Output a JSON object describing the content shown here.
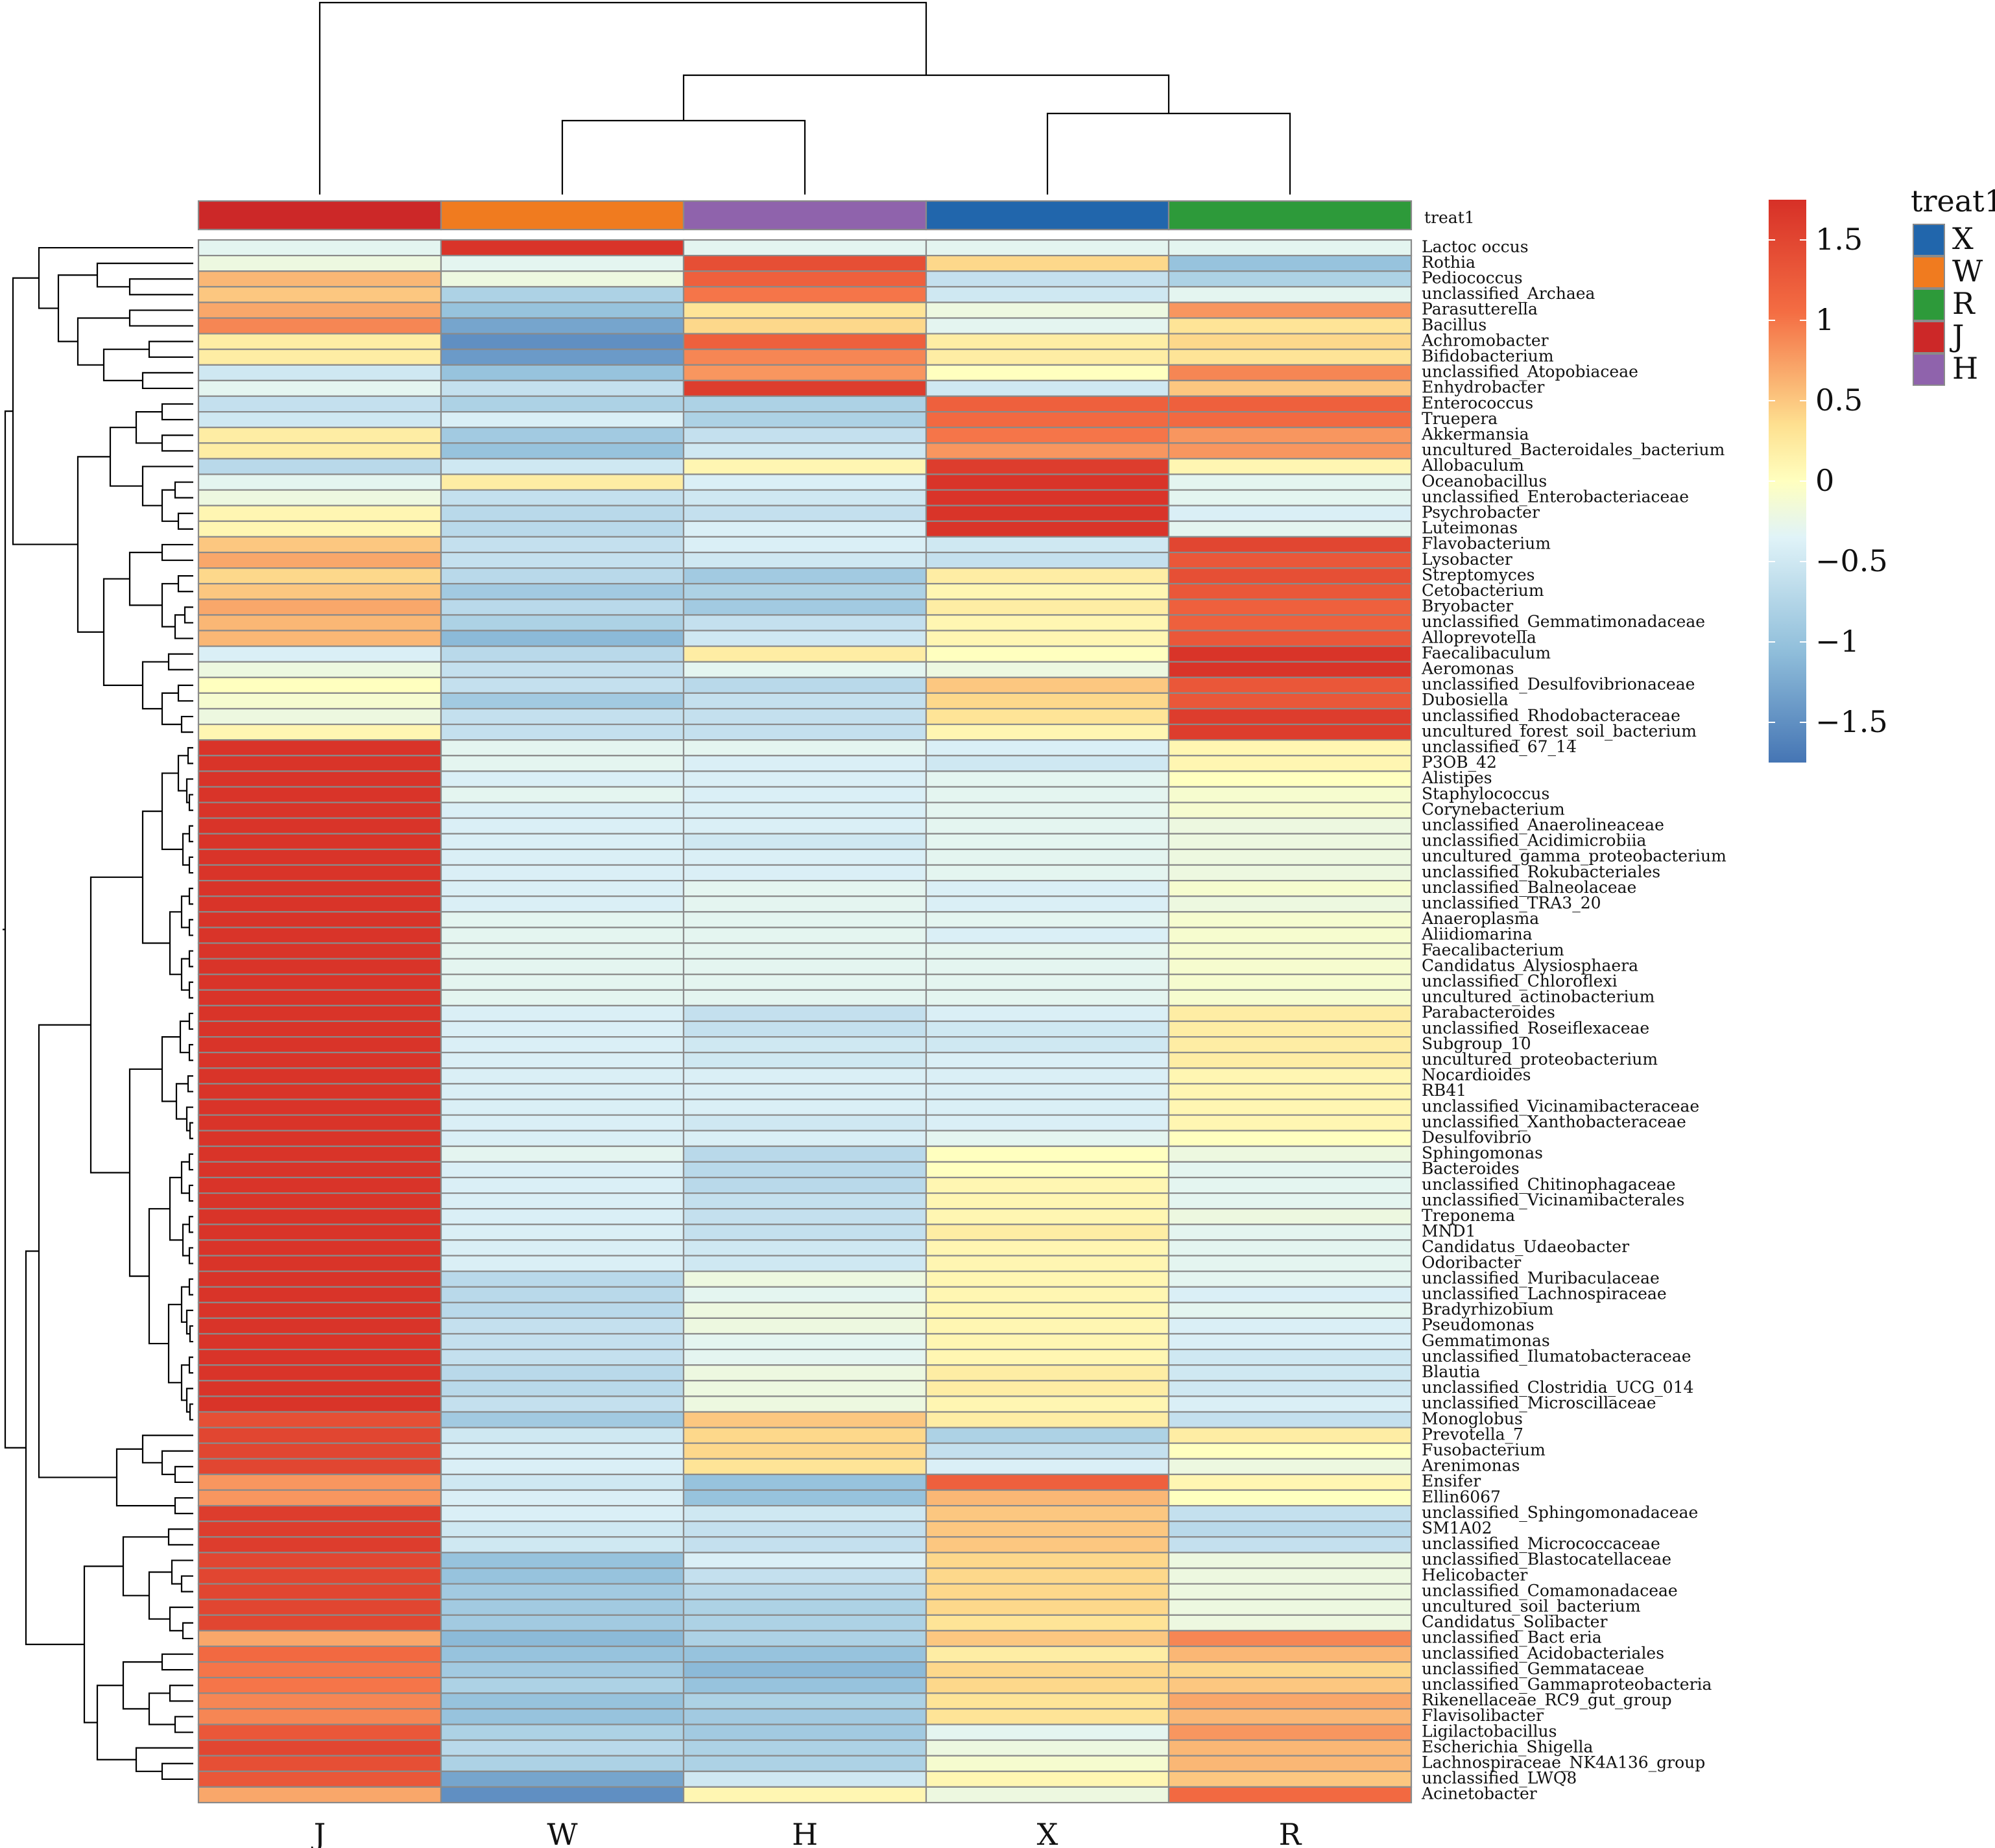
{
  "chart_data": {
    "type": "heatmap",
    "columns": [
      "J",
      "W",
      "H",
      "X",
      "R"
    ],
    "annotation": {
      "name": "treat1",
      "groups": [
        "X",
        "W",
        "R",
        "J",
        "H"
      ],
      "colors": {
        "X": "#2166ac",
        "W": "#f07b1f",
        "R": "#2d9a3a",
        "J": "#cc2828",
        "H": "#8f63ac"
      }
    },
    "color_scale": {
      "min": -1.75,
      "max": 1.75,
      "ticks": [
        1.5,
        1,
        0.5,
        0,
        -0.5,
        -1,
        -1.5
      ],
      "tick_labels": [
        "1.5",
        "1",
        "0.5",
        "0",
        "−0.5",
        "−1",
        "−1.5"
      ],
      "stops": [
        {
          "v": -1.75,
          "c": "#4575b4"
        },
        {
          "v": -1.05,
          "c": "#91bfdb"
        },
        {
          "v": -0.35,
          "c": "#e0f3f8"
        },
        {
          "v": 0.0,
          "c": "#ffffbf"
        },
        {
          "v": 0.35,
          "c": "#fee090"
        },
        {
          "v": 1.05,
          "c": "#f46d43"
        },
        {
          "v": 1.75,
          "c": "#d73027"
        }
      ]
    },
    "rows": [
      {
        "label": "Lactoc occus",
        "values": [
          -0.3,
          1.7,
          -0.3,
          -0.3,
          -0.3
        ]
      },
      {
        "label": "Rothia",
        "values": [
          -0.2,
          -0.3,
          1.4,
          0.4,
          -1.0
        ]
      },
      {
        "label": "Pediococcus",
        "values": [
          0.6,
          -0.2,
          1.2,
          -0.6,
          -0.8
        ]
      },
      {
        "label": "unclassified_Archaea",
        "values": [
          0.5,
          -0.8,
          1.0,
          -0.5,
          -0.3
        ]
      },
      {
        "label": "Parasutterella",
        "values": [
          0.7,
          -1.0,
          0.3,
          -0.2,
          0.8
        ]
      },
      {
        "label": "Bacillus",
        "values": [
          0.9,
          -1.3,
          0.4,
          -0.3,
          0.3
        ]
      },
      {
        "label": "Achromobacter",
        "values": [
          0.2,
          -1.5,
          1.2,
          0.2,
          0.4
        ]
      },
      {
        "label": "Bifidobacterium",
        "values": [
          0.2,
          -1.4,
          0.9,
          0.2,
          0.3
        ]
      },
      {
        "label": "unclassified_Atopobiaceae",
        "values": [
          -0.5,
          -1.0,
          0.8,
          0.0,
          0.9
        ]
      },
      {
        "label": "Enhydrobacter",
        "values": [
          -0.3,
          -0.6,
          1.6,
          -0.5,
          0.5
        ]
      },
      {
        "label": "Enterococcus",
        "values": [
          -0.6,
          -0.8,
          -0.8,
          1.2,
          1.2
        ]
      },
      {
        "label": "Truepera",
        "values": [
          -0.5,
          -0.4,
          -0.8,
          1.1,
          1.1
        ]
      },
      {
        "label": "Akkermansia",
        "values": [
          0.2,
          -0.9,
          -0.6,
          1.0,
          0.8
        ]
      },
      {
        "label": "uncultured_Bacteroidales_bacterium",
        "values": [
          0.2,
          -1.0,
          -0.5,
          0.8,
          0.8
        ]
      },
      {
        "label": "Allobaculum",
        "values": [
          -0.7,
          -0.5,
          0.1,
          1.6,
          0.1
        ]
      },
      {
        "label": "Oceanobacillus",
        "values": [
          -0.3,
          0.2,
          -0.4,
          1.7,
          -0.3
        ]
      },
      {
        "label": "unclassified_Enterobacteriaceae",
        "values": [
          -0.2,
          -0.6,
          -0.5,
          1.7,
          -0.3
        ]
      },
      {
        "label": "Psychrobacter",
        "values": [
          0.1,
          -0.7,
          -0.6,
          1.7,
          -0.4
        ]
      },
      {
        "label": "Luteimonas",
        "values": [
          0.1,
          -0.7,
          -0.4,
          1.7,
          -0.3
        ]
      },
      {
        "label": "Flavobacterium",
        "values": [
          0.5,
          -0.6,
          -0.4,
          -0.5,
          1.5
        ]
      },
      {
        "label": "Lysobacter",
        "values": [
          0.7,
          -0.6,
          -0.5,
          -0.6,
          1.3
        ]
      },
      {
        "label": "Streptomyces",
        "values": [
          0.4,
          -0.7,
          -0.9,
          0.2,
          1.4
        ]
      },
      {
        "label": "Cetobacterium",
        "values": [
          0.5,
          -0.9,
          -0.8,
          0.1,
          1.3
        ]
      },
      {
        "label": "Bryobacter",
        "values": [
          0.7,
          -0.7,
          -0.9,
          0.2,
          1.2
        ]
      },
      {
        "label": "unclassified_Gemmatimonadaceae",
        "values": [
          0.6,
          -0.8,
          -0.6,
          0.1,
          1.2
        ]
      },
      {
        "label": "Alloprevotella",
        "values": [
          0.6,
          -1.1,
          -0.5,
          0.1,
          1.3
        ]
      },
      {
        "label": "Faecalibaculum",
        "values": [
          -0.4,
          -0.7,
          0.2,
          0.0,
          1.7
        ]
      },
      {
        "label": "Aeromonas",
        "values": [
          -0.2,
          -0.6,
          -0.3,
          -0.2,
          1.7
        ]
      },
      {
        "label": "unclassified_Desulfovibrionaceae",
        "values": [
          0.0,
          -0.6,
          -0.7,
          0.5,
          1.3
        ]
      },
      {
        "label": "Dubosiella",
        "values": [
          -0.1,
          -0.9,
          -0.6,
          0.4,
          1.3
        ]
      },
      {
        "label": "unclassified_Rhodobacteraceae",
        "values": [
          -0.2,
          -0.6,
          -0.6,
          0.3,
          1.6
        ]
      },
      {
        "label": "uncultured_forest_soil_bacterium",
        "values": [
          0.1,
          -0.6,
          -0.6,
          0.1,
          1.6
        ]
      },
      {
        "label": "unclassified_67_14",
        "values": [
          1.7,
          -0.3,
          -0.3,
          -0.4,
          0.1
        ]
      },
      {
        "label": "P3OB_42",
        "values": [
          1.7,
          -0.3,
          -0.4,
          -0.5,
          0.1
        ]
      },
      {
        "label": "Alistipes",
        "values": [
          1.7,
          -0.4,
          -0.4,
          -0.3,
          0.0
        ]
      },
      {
        "label": "Staphylococcus",
        "values": [
          1.7,
          -0.3,
          -0.4,
          -0.3,
          -0.1
        ]
      },
      {
        "label": "Corynebacterium",
        "values": [
          1.7,
          -0.4,
          -0.4,
          -0.3,
          -0.1
        ]
      },
      {
        "label": "unclassified_Anaerolineaceae",
        "values": [
          1.7,
          -0.4,
          -0.4,
          -0.3,
          -0.2
        ]
      },
      {
        "label": "unclassified_Acidimicrobiia",
        "values": [
          1.7,
          -0.4,
          -0.5,
          -0.3,
          -0.2
        ]
      },
      {
        "label": "uncultured_gamma_proteobacterium",
        "values": [
          1.7,
          -0.4,
          -0.4,
          -0.3,
          -0.2
        ]
      },
      {
        "label": "unclassified_Rokubacteriales",
        "values": [
          1.7,
          -0.4,
          -0.4,
          -0.3,
          -0.2
        ]
      },
      {
        "label": "unclassified_Balneolaceae",
        "values": [
          1.7,
          -0.4,
          -0.3,
          -0.4,
          -0.1
        ]
      },
      {
        "label": "unclassified_TRA3_20",
        "values": [
          1.7,
          -0.4,
          -0.3,
          -0.4,
          -0.2
        ]
      },
      {
        "label": "Anaeroplasma",
        "values": [
          1.7,
          -0.3,
          -0.3,
          -0.3,
          -0.1
        ]
      },
      {
        "label": "Aliidiomarina",
        "values": [
          1.7,
          -0.3,
          -0.3,
          -0.4,
          -0.1
        ]
      },
      {
        "label": "Faecalibacterium",
        "values": [
          1.7,
          -0.3,
          -0.3,
          -0.3,
          -0.1
        ]
      },
      {
        "label": "Candidatus_Alysiosphaera",
        "values": [
          1.7,
          -0.3,
          -0.3,
          -0.3,
          -0.1
        ]
      },
      {
        "label": "unclassified_Chloroflexi",
        "values": [
          1.7,
          -0.3,
          -0.3,
          -0.3,
          -0.1
        ]
      },
      {
        "label": "uncultured_actinobacterium",
        "values": [
          1.7,
          -0.3,
          -0.3,
          -0.3,
          -0.1
        ]
      },
      {
        "label": "Parabacteroides",
        "values": [
          1.7,
          -0.4,
          -0.6,
          -0.4,
          0.2
        ]
      },
      {
        "label": "unclassified_Roseiflexaceae",
        "values": [
          1.7,
          -0.4,
          -0.6,
          -0.5,
          0.2
        ]
      },
      {
        "label": "Subgroup_10",
        "values": [
          1.7,
          -0.4,
          -0.5,
          -0.5,
          0.2
        ]
      },
      {
        "label": "uncultured_proteobacterium",
        "values": [
          1.7,
          -0.4,
          -0.5,
          -0.4,
          0.2
        ]
      },
      {
        "label": "Nocardioides",
        "values": [
          1.7,
          -0.4,
          -0.4,
          -0.4,
          0.1
        ]
      },
      {
        "label": "RB41",
        "values": [
          1.7,
          -0.4,
          -0.4,
          -0.4,
          0.1
        ]
      },
      {
        "label": "unclassified_Vicinamibacteraceae",
        "values": [
          1.7,
          -0.4,
          -0.4,
          -0.4,
          0.1
        ]
      },
      {
        "label": "unclassified_Xanthobacteraceae",
        "values": [
          1.7,
          -0.4,
          -0.5,
          -0.4,
          0.1
        ]
      },
      {
        "label": "Desulfovibrio",
        "values": [
          1.7,
          -0.4,
          -0.4,
          -0.3,
          0.0
        ]
      },
      {
        "label": "Sphingomonas",
        "values": [
          1.7,
          -0.3,
          -0.7,
          0.0,
          -0.2
        ]
      },
      {
        "label": "Bacteroides",
        "values": [
          1.7,
          -0.4,
          -0.7,
          0.0,
          -0.3
        ]
      },
      {
        "label": "unclassified_Chitinophagaceae",
        "values": [
          1.7,
          -0.4,
          -0.7,
          0.1,
          -0.3
        ]
      },
      {
        "label": "unclassified_Vicinamibacterales",
        "values": [
          1.7,
          -0.4,
          -0.6,
          0.1,
          -0.3
        ]
      },
      {
        "label": "Treponema",
        "values": [
          1.7,
          -0.4,
          -0.6,
          0.1,
          -0.2
        ]
      },
      {
        "label": "MND1",
        "values": [
          1.7,
          -0.4,
          -0.6,
          0.2,
          -0.3
        ]
      },
      {
        "label": "Candidatus_Udaeobacter",
        "values": [
          1.7,
          -0.4,
          -0.5,
          0.1,
          -0.3
        ]
      },
      {
        "label": "Odoribacter",
        "values": [
          1.7,
          -0.4,
          -0.5,
          0.1,
          -0.3
        ]
      },
      {
        "label": "unclassified_Muribaculaceae",
        "values": [
          1.7,
          -0.7,
          -0.2,
          0.1,
          -0.3
        ]
      },
      {
        "label": "unclassified_Lachnospiraceae",
        "values": [
          1.7,
          -0.7,
          -0.3,
          0.1,
          -0.4
        ]
      },
      {
        "label": "Bradyrhizobium",
        "values": [
          1.7,
          -0.7,
          -0.2,
          0.1,
          -0.3
        ]
      },
      {
        "label": "Pseudomonas",
        "values": [
          1.7,
          -0.6,
          -0.2,
          0.1,
          -0.4
        ]
      },
      {
        "label": "Gemmatimonas",
        "values": [
          1.7,
          -0.6,
          -0.3,
          0.1,
          -0.4
        ]
      },
      {
        "label": "unclassified_Ilumatobacteraceae",
        "values": [
          1.7,
          -0.6,
          -0.3,
          0.1,
          -0.5
        ]
      },
      {
        "label": "Blautia",
        "values": [
          1.7,
          -0.7,
          -0.2,
          0.2,
          -0.5
        ]
      },
      {
        "label": "unclassified_Clostridia_UCG_014",
        "values": [
          1.7,
          -0.7,
          -0.2,
          0.2,
          -0.5
        ]
      },
      {
        "label": "unclassified_Microscillaceae",
        "values": [
          1.7,
          -0.6,
          -0.2,
          0.1,
          -0.4
        ]
      },
      {
        "label": "Monoglobus",
        "values": [
          1.4,
          -0.9,
          0.5,
          0.2,
          -0.6
        ]
      },
      {
        "label": "Prevotella_7",
        "values": [
          1.5,
          -0.5,
          0.4,
          -0.8,
          0.2
        ]
      },
      {
        "label": "Fusobacterium",
        "values": [
          1.5,
          -0.4,
          0.4,
          -0.6,
          0.0
        ]
      },
      {
        "label": "Arenimonas",
        "values": [
          1.5,
          -0.4,
          0.3,
          -0.4,
          -0.2
        ]
      },
      {
        "label": "Ensifer",
        "values": [
          0.8,
          -0.5,
          -1.0,
          1.2,
          0.1
        ]
      },
      {
        "label": "Ellin6067",
        "values": [
          0.8,
          -0.4,
          -1.0,
          0.6,
          0.0
        ]
      },
      {
        "label": "unclassified_Sphingomonadaceae",
        "values": [
          1.6,
          -0.4,
          -0.5,
          0.5,
          -0.6
        ]
      },
      {
        "label": "SM1A02",
        "values": [
          1.6,
          -0.5,
          -0.6,
          0.5,
          -0.7
        ]
      },
      {
        "label": "unclassified_Micrococcaceae",
        "values": [
          1.6,
          -0.5,
          -0.6,
          0.5,
          -0.6
        ]
      },
      {
        "label": "unclassified_Blastocatellaceae",
        "values": [
          1.5,
          -1.0,
          -0.4,
          0.4,
          -0.2
        ]
      },
      {
        "label": "Helicobacter",
        "values": [
          1.5,
          -1.0,
          -0.6,
          0.4,
          -0.2
        ]
      },
      {
        "label": "unclassified_Comamonadaceae",
        "values": [
          1.5,
          -0.9,
          -0.7,
          0.4,
          -0.2
        ]
      },
      {
        "label": "uncultured_soil_bacterium",
        "values": [
          1.5,
          -0.9,
          -0.8,
          0.4,
          -0.2
        ]
      },
      {
        "label": "Candidatus_Solibacter",
        "values": [
          1.5,
          -0.9,
          -0.8,
          0.3,
          -0.2
        ]
      },
      {
        "label": "unclassified_Bact eria",
        "values": [
          0.7,
          -1.1,
          -0.8,
          0.5,
          0.9
        ]
      },
      {
        "label": "unclassified_Acidobacteriales",
        "values": [
          1.1,
          -1.0,
          -1.0,
          0.2,
          0.6
        ]
      },
      {
        "label": "unclassified_Gemmataceae",
        "values": [
          1.0,
          -0.9,
          -1.1,
          0.4,
          0.4
        ]
      },
      {
        "label": "unclassified_Gammaproteobacteria",
        "values": [
          1.0,
          -0.8,
          -1.0,
          0.4,
          0.5
        ]
      },
      {
        "label": "Rikenellaceae_RC9_gut_group",
        "values": [
          0.9,
          -1.0,
          -0.8,
          0.3,
          0.7
        ]
      },
      {
        "label": "Flavisolibacter",
        "values": [
          0.9,
          -1.0,
          -0.9,
          0.3,
          0.6
        ]
      },
      {
        "label": "Ligilactobacillus",
        "values": [
          1.3,
          -0.8,
          -0.9,
          -0.3,
          0.8
        ]
      },
      {
        "label": "Escherichia_Shigella",
        "values": [
          1.5,
          -0.7,
          -0.8,
          -0.2,
          0.6
        ]
      },
      {
        "label": "Lachnospiraceae_NK4A136_group",
        "values": [
          1.4,
          -0.8,
          -0.8,
          -0.1,
          0.6
        ]
      },
      {
        "label": "unclassified_LWQ8",
        "values": [
          1.3,
          -1.3,
          -0.5,
          0.1,
          0.5
        ]
      },
      {
        "label": "Acinetobacter",
        "values": [
          0.7,
          -1.5,
          0.1,
          -0.2,
          1.1
        ]
      }
    ]
  }
}
